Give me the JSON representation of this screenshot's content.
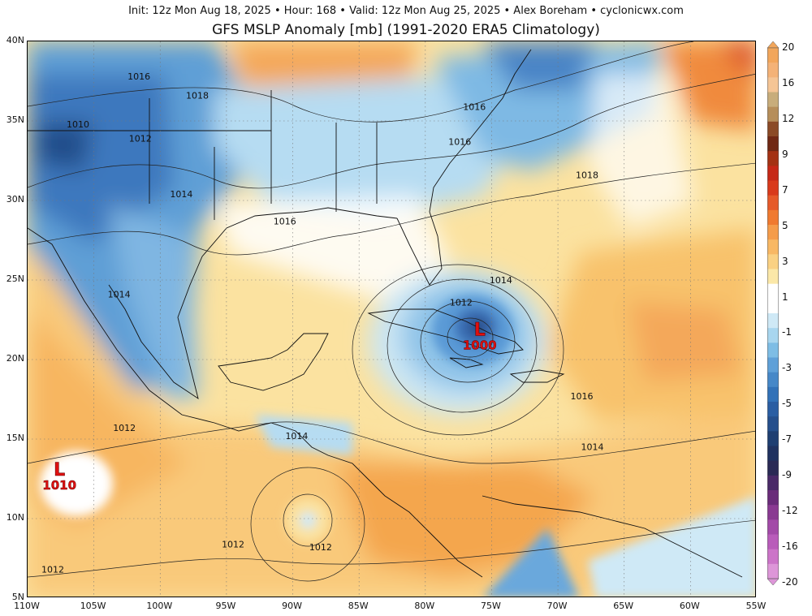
{
  "header": {
    "info": "Init: 12z Mon Aug 18, 2025 • Hour: 168 • Valid: 12z Mon Aug 25, 2025 • Alex Boreham • cyclonicwx.com",
    "title": "GFS MSLP Anomaly [mb] (1991-2020 ERA5 Climatology)"
  },
  "axes": {
    "lat_labels": [
      "40N",
      "35N",
      "30N",
      "25N",
      "20N",
      "15N",
      "10N",
      "5N"
    ],
    "lon_labels": [
      "110W",
      "105W",
      "100W",
      "95W",
      "90W",
      "85W",
      "80W",
      "75W",
      "70W",
      "65W",
      "60W",
      "55W"
    ],
    "lat_range": [
      5,
      40
    ],
    "lon_range": [
      -110,
      -55
    ]
  },
  "isobar_labels": [
    {
      "text": "1016",
      "lon": -101.6,
      "lat": 37.6
    },
    {
      "text": "1018",
      "lon": -97.2,
      "lat": 36.4
    },
    {
      "text": "1010",
      "lon": -106.2,
      "lat": 34.6
    },
    {
      "text": "1012",
      "lon": -101.5,
      "lat": 33.7
    },
    {
      "text": "1014",
      "lon": -98.4,
      "lat": 30.2
    },
    {
      "text": "1016",
      "lon": -90.6,
      "lat": 28.5
    },
    {
      "text": "1016",
      "lon": -76.3,
      "lat": 35.7
    },
    {
      "text": "1016",
      "lon": -77.4,
      "lat": 33.5
    },
    {
      "text": "1018",
      "lon": -67.8,
      "lat": 31.4
    },
    {
      "text": "1014",
      "lon": -103.1,
      "lat": 23.9
    },
    {
      "text": "1014",
      "lon": -74.3,
      "lat": 24.8
    },
    {
      "text": "1012",
      "lon": -77.3,
      "lat": 23.4
    },
    {
      "text": "1016",
      "lon": -68.2,
      "lat": 17.5
    },
    {
      "text": "1012",
      "lon": -102.7,
      "lat": 15.5
    },
    {
      "text": "1014",
      "lon": -89.7,
      "lat": 15.0
    },
    {
      "text": "1014",
      "lon": -67.4,
      "lat": 14.3
    },
    {
      "text": "1012",
      "lon": -94.5,
      "lat": 8.2
    },
    {
      "text": "1012",
      "lon": -87.9,
      "lat": 8.0
    },
    {
      "text": "1012",
      "lon": -108.1,
      "lat": 6.6
    }
  ],
  "lows": [
    {
      "letter": "L",
      "value": "1010",
      "lon": -107.6,
      "lat": 12.7
    },
    {
      "letter": "L",
      "value": "1000",
      "lon": -75.9,
      "lat": 21.5
    }
  ],
  "colorbar": {
    "labels": [
      "20",
      "16",
      "12",
      "9",
      "7",
      "5",
      "3",
      "1",
      "-1",
      "-3",
      "-5",
      "-7",
      "-9",
      "-12",
      "-16",
      "-20"
    ],
    "colors": [
      "#f2a65b",
      "#f4b277",
      "#f5c595",
      "#c8ad7b",
      "#b68e5a",
      "#8b4a26",
      "#702814",
      "#a43214",
      "#c62818",
      "#d93a1c",
      "#e65a2a",
      "#f07a30",
      "#f59c4a",
      "#f8b864",
      "#fad183",
      "#fbe8a8",
      "#ffffff",
      "#ffffff",
      "#cfe9f6",
      "#a8d6ef",
      "#7ebde5",
      "#5fa0d8",
      "#4688c8",
      "#3272b8",
      "#2a5ea3",
      "#254f8c",
      "#1f3f72",
      "#203260",
      "#2a2a55",
      "#4a2a68",
      "#6a2c7a",
      "#8a3a92",
      "#a34aa8",
      "#b95cba",
      "#cc74c8",
      "#dd96d8"
    ]
  },
  "colors": {
    "land_border": "#111111",
    "low_marker": "#e01010"
  }
}
